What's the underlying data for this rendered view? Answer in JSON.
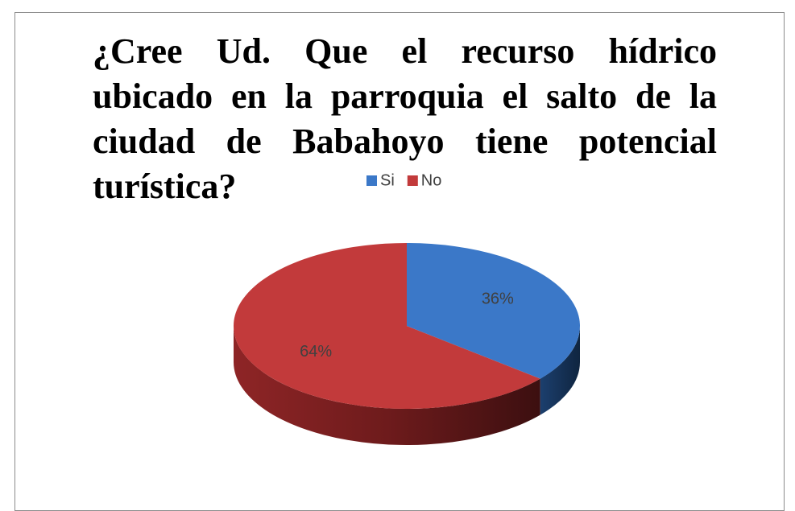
{
  "chart_data": {
    "type": "pie",
    "title": "¿Cree Ud. Que el recurso hídrico ubicado en la parroquia el salto de la ciudad de Babahoyo tiene potencial turística?",
    "categories": [
      "Si",
      "No"
    ],
    "values": [
      36,
      64
    ],
    "value_labels": [
      "36%",
      "64%"
    ],
    "colors": [
      "#3b78c8",
      "#c23a3b"
    ],
    "legend": "top"
  }
}
